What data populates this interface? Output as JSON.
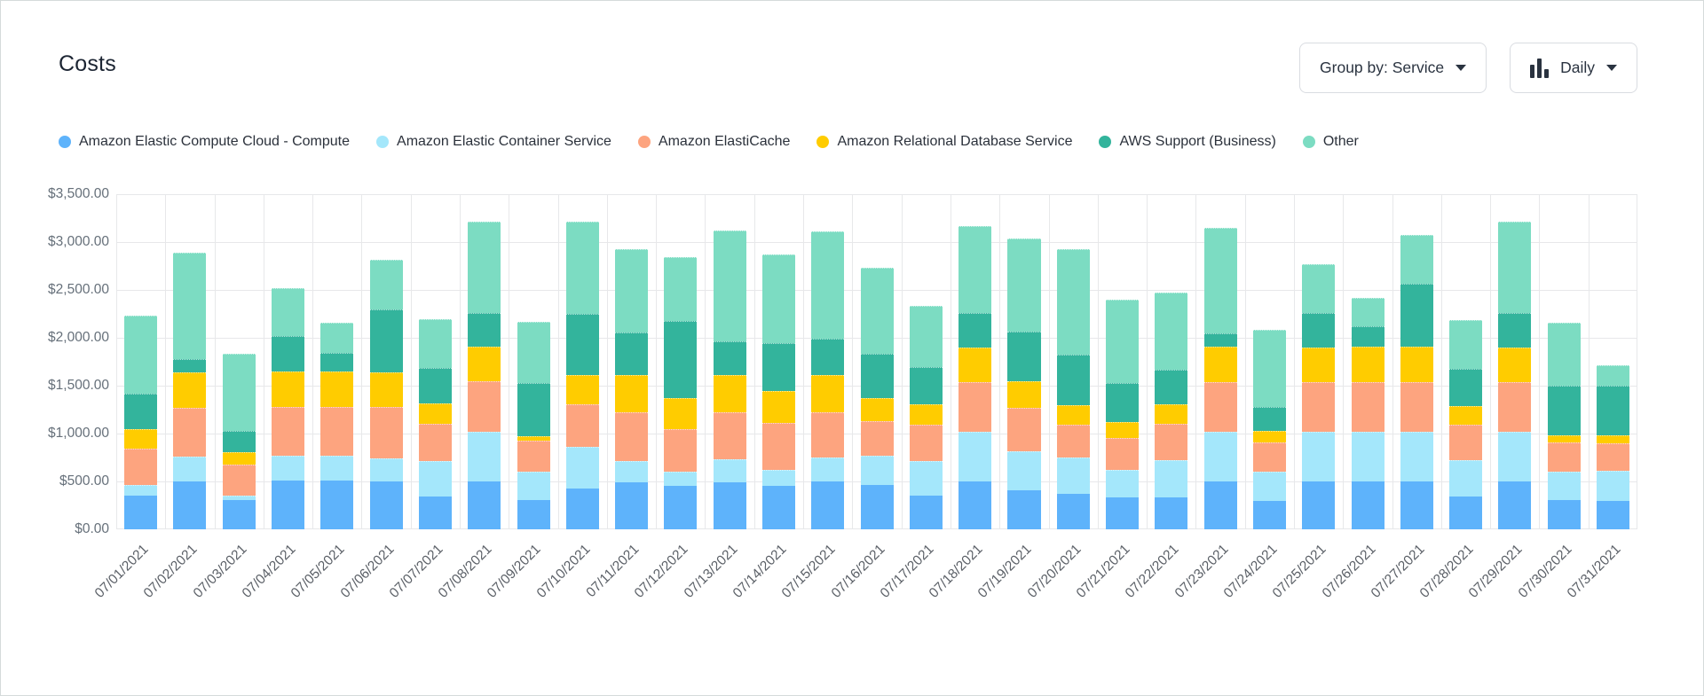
{
  "header": {
    "title": "Costs",
    "group_by_label": "Group by: Service",
    "interval_label": "Daily"
  },
  "colors": {
    "card_border": "#d5dbdb",
    "gridline": "#e7e8ea",
    "axis_text": "#66707a",
    "title_text": "#1c2533",
    "button_border": "#d9dce1"
  },
  "chart_data": {
    "type": "bar",
    "stacked": true,
    "title": "Costs",
    "xlabel": "",
    "ylabel": "",
    "ylim": [
      0,
      3500
    ],
    "grid": true,
    "legend_position": "top",
    "y_ticks": [
      "$3,500.00",
      "$3,000.00",
      "$2,500.00",
      "$2,000.00",
      "$1,500.00",
      "$1,000.00",
      "$500.00",
      "$0.00"
    ],
    "categories": [
      "07/01/2021",
      "07/02/2021",
      "07/03/2021",
      "07/04/2021",
      "07/05/2021",
      "07/06/2021",
      "07/07/2021",
      "07/08/2021",
      "07/09/2021",
      "07/10/2021",
      "07/11/2021",
      "07/12/2021",
      "07/13/2021",
      "07/14/2021",
      "07/15/2021",
      "07/16/2021",
      "07/17/2021",
      "07/18/2021",
      "07/19/2021",
      "07/20/2021",
      "07/21/2021",
      "07/22/2021",
      "07/23/2021",
      "07/24/2021",
      "07/25/2021",
      "07/26/2021",
      "07/27/2021",
      "07/28/2021",
      "07/29/2021",
      "07/30/2021",
      "07/31/2021"
    ],
    "series": [
      {
        "name": "Amazon Elastic Compute Cloud - Compute",
        "color": "#5eb3fb",
        "values": [
          355,
          500,
          305,
          505,
          505,
          500,
          345,
          500,
          305,
          425,
          490,
          450,
          495,
          455,
          500,
          465,
          350,
          500,
          410,
          370,
          335,
          335,
          500,
          295,
          500,
          500,
          500,
          345,
          500,
          305,
          295
        ]
      },
      {
        "name": "Amazon Elastic Container Service",
        "color": "#a4e7fb",
        "values": [
          110,
          260,
          45,
          260,
          260,
          240,
          370,
          520,
          295,
          435,
          225,
          150,
          235,
          165,
          250,
          305,
          365,
          520,
          405,
          380,
          285,
          385,
          520,
          305,
          520,
          520,
          520,
          375,
          520,
          295,
          315
        ]
      },
      {
        "name": "Amazon ElastiCache",
        "color": "#fda47f",
        "values": [
          380,
          505,
          325,
          510,
          510,
          540,
          385,
          525,
          325,
          445,
          505,
          450,
          495,
          490,
          470,
          360,
          380,
          515,
          455,
          345,
          335,
          380,
          515,
          310,
          515,
          515,
          515,
          375,
          515,
          310,
          290
        ]
      },
      {
        "name": "Amazon Relational Database Service",
        "color": "#ffcc00",
        "values": [
          200,
          375,
          130,
          370,
          370,
          360,
          215,
          365,
          45,
          305,
          395,
          325,
          385,
          335,
          390,
          245,
          210,
          365,
          275,
          200,
          165,
          205,
          375,
          120,
          365,
          375,
          375,
          190,
          365,
          70,
          80
        ]
      },
      {
        "name": "AWS Support (Business)",
        "color": "#33b49c",
        "values": [
          375,
          140,
          225,
          370,
          195,
          655,
          370,
          350,
          560,
          640,
          440,
          800,
          355,
          500,
          380,
          460,
          390,
          360,
          520,
          530,
          410,
          360,
          135,
          250,
          360,
          210,
          655,
          390,
          360,
          520,
          520
        ]
      },
      {
        "name": "Other",
        "color": "#7cdcc2",
        "values": [
          815,
          1105,
          805,
          505,
          320,
          520,
          510,
          955,
          635,
          965,
          870,
          670,
          1155,
          925,
          1120,
          895,
          640,
          905,
          975,
          1100,
          870,
          805,
          1105,
          805,
          510,
          300,
          510,
          510,
          955,
          660,
          215
        ]
      }
    ]
  }
}
